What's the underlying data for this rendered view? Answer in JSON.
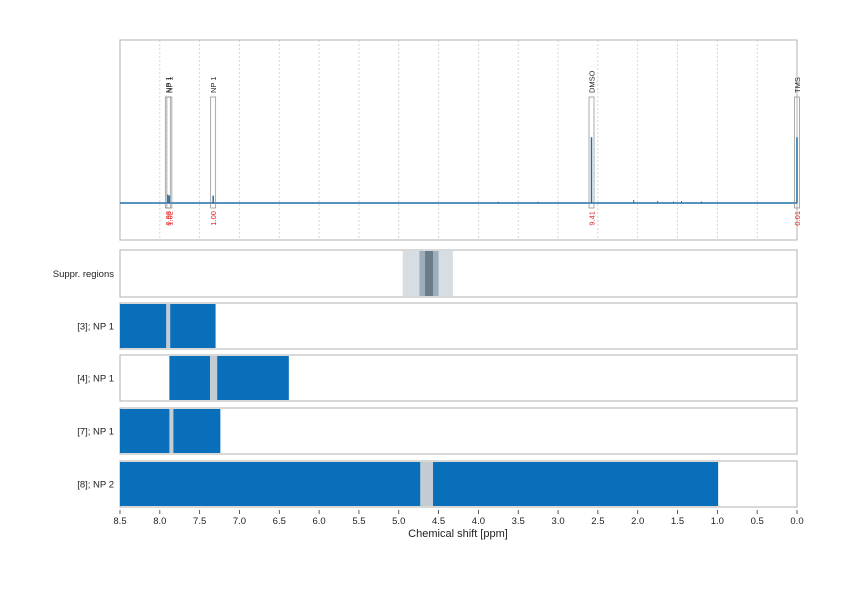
{
  "chart_data": {
    "type": "nmr-spectrum",
    "xlabel": "Chemical shift [ppm]",
    "xlim": [
      8.5,
      0.0
    ],
    "x_ticks": [
      "8.5",
      "8.0",
      "7.5",
      "7.0",
      "6.5",
      "6.0",
      "5.5",
      "5.0",
      "4.5",
      "4.0",
      "3.5",
      "3.0",
      "2.5",
      "2.0",
      "1.5",
      "1.0",
      "0.5",
      "0.0"
    ],
    "colors": {
      "spectrum": "#1f6fa8",
      "range_bar": "#0a6fba",
      "gap": "#c2ccd2",
      "integral_text": "#e31a1c",
      "suppr_outer": "#d6dde3",
      "suppr_mid": "#9daeba",
      "suppr_inner": "#6b7c89",
      "border": "#b0b0b0",
      "grid": "#cccccc"
    },
    "peaks": [
      {
        "label": "NP 1",
        "ppm": 7.9,
        "integral": "0.98",
        "height": 0.08
      },
      {
        "label": "NP 1",
        "ppm": 7.88,
        "integral": "1.02",
        "height": 0.07
      },
      {
        "label": "NP 1",
        "ppm": 7.33,
        "integral": "1.00",
        "height": 0.07
      },
      {
        "label": "DMSO",
        "ppm": 2.58,
        "integral": "9.41",
        "height": 0.62
      },
      {
        "label": "TMS",
        "ppm": 0.0,
        "integral": "0.01",
        "height": 0.62
      }
    ],
    "suppression_regions": {
      "label": "Suppr. regions",
      "outer": [
        4.95,
        4.32
      ],
      "mid": [
        4.74,
        4.5
      ],
      "inner": [
        4.67,
        4.57
      ]
    },
    "ranges": [
      {
        "label": "[3]; NP 1",
        "bars": [
          [
            8.5,
            7.92
          ],
          [
            7.87,
            7.3
          ]
        ]
      },
      {
        "label": "[4]; NP 1",
        "bars": [
          [
            7.88,
            7.37
          ],
          [
            7.28,
            6.38
          ]
        ]
      },
      {
        "label": "[7]; NP 1",
        "bars": [
          [
            8.5,
            7.88
          ],
          [
            7.83,
            7.24
          ]
        ]
      },
      {
        "label": "[8]; NP 2",
        "bars": [
          [
            8.5,
            4.73
          ],
          [
            4.57,
            0.99
          ]
        ]
      }
    ]
  }
}
